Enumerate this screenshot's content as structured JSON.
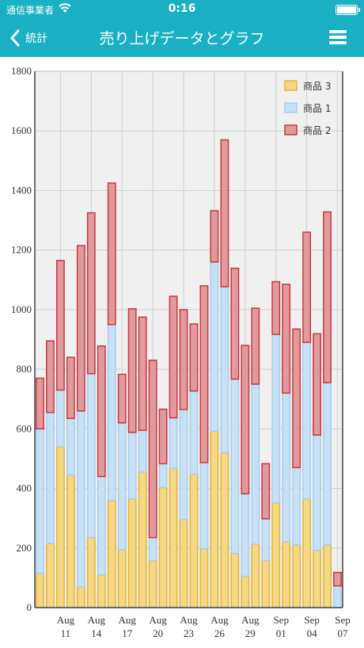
{
  "status": {
    "carrier": "通信事業者",
    "time": "0:16"
  },
  "nav": {
    "back_label": "統計",
    "title": "売り上げデータとグラフ"
  },
  "colors": {
    "header_bg": "#1ab0c4",
    "s3_fill": "#f5d883",
    "s3_stroke": "#e3b43a",
    "s1_fill": "#c6e0f5",
    "s1_stroke": "#a9cdeb",
    "s2_fill": "#e09a9d",
    "s2_stroke": "#c9383d",
    "plot_bg": "#f0f0f0",
    "grid": "#d0d0d0"
  },
  "chart_data": {
    "type": "bar",
    "stacked": true,
    "ylim": [
      0,
      1800
    ],
    "yticks": [
      0,
      200,
      400,
      600,
      800,
      1000,
      1200,
      1400,
      1600,
      1800
    ],
    "grid": true,
    "legend_position": "top-right",
    "xticks": [
      {
        "month": "Aug",
        "day": "11"
      },
      {
        "month": "Aug",
        "day": "14"
      },
      {
        "month": "Aug",
        "day": "17"
      },
      {
        "month": "Aug",
        "day": "20"
      },
      {
        "month": "Aug",
        "day": "23"
      },
      {
        "month": "Aug",
        "day": "26"
      },
      {
        "month": "Aug",
        "day": "29"
      },
      {
        "month": "Sep",
        "day": "01"
      },
      {
        "month": "Sep",
        "day": "04"
      },
      {
        "month": "Sep",
        "day": "07"
      }
    ],
    "series": [
      {
        "name": "商品 3",
        "values": [
          115,
          215,
          540,
          445,
          70,
          235,
          110,
          360,
          195,
          365,
          455,
          158,
          403,
          467,
          295,
          447,
          197,
          592,
          520,
          182,
          105,
          213,
          158,
          352,
          220,
          210,
          365,
          192,
          210,
          0
        ]
      },
      {
        "name": "商品 1",
        "values": [
          485,
          440,
          190,
          190,
          590,
          550,
          330,
          590,
          425,
          223,
          140,
          77,
          80,
          170,
          370,
          280,
          290,
          568,
          557,
          585,
          277,
          537,
          140,
          565,
          500,
          260,
          525,
          387,
          545,
          73
        ]
      },
      {
        "name": "商品 2",
        "values": [
          170,
          240,
          435,
          205,
          555,
          540,
          438,
          475,
          163,
          415,
          380,
          595,
          183,
          408,
          335,
          225,
          593,
          172,
          493,
          372,
          498,
          255,
          185,
          177,
          365,
          465,
          370,
          340,
          573,
          45
        ]
      }
    ],
    "legend_order": [
      0,
      1,
      2
    ]
  }
}
